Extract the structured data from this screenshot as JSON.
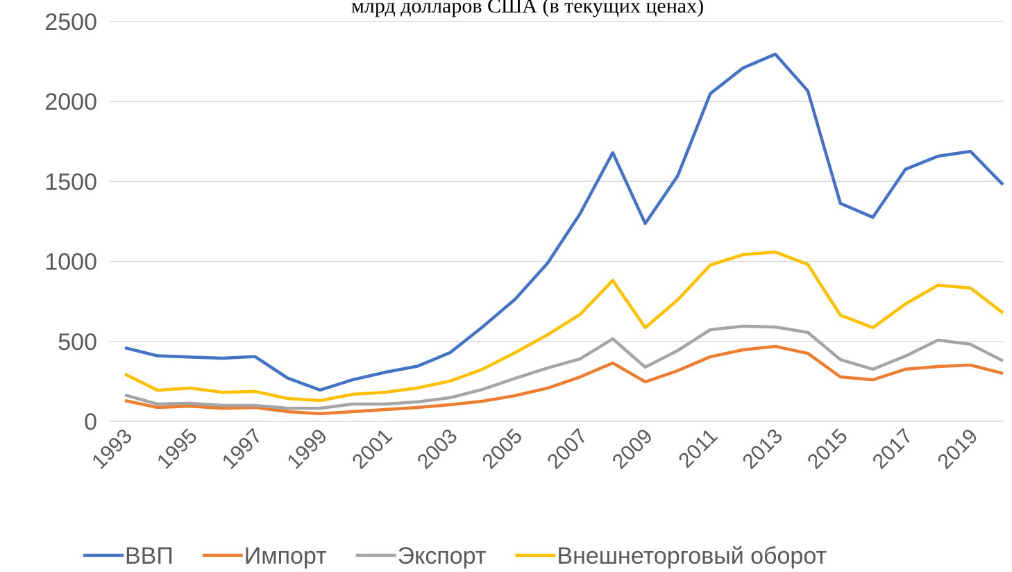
{
  "chart_data": {
    "type": "line",
    "title": "млрд долларов США (в текущих ценах)",
    "categories": [
      "1993",
      null,
      "1995",
      null,
      "1997",
      null,
      "1999",
      null,
      "2001",
      null,
      "2003",
      null,
      "2005",
      null,
      "2007",
      null,
      "2009",
      null,
      "2011",
      null,
      "2013",
      null,
      "2015",
      null,
      "2017",
      null,
      "2019",
      null
    ],
    "series": [
      {
        "name": "ВВП",
        "color": "#4472c4",
        "values": [
          460,
          410,
          402,
          395,
          405,
          271,
          196,
          260,
          307,
          345,
          430,
          591,
          764,
          990,
          1300,
          1680,
          1237,
          1536,
          2049,
          2209,
          2296,
          2066,
          1363,
          1276,
          1576,
          1658,
          1688,
          1480
        ]
      },
      {
        "name": "Импорт",
        "color": "#ed7d31",
        "values": [
          130,
          87,
          95,
          82,
          87,
          61,
          48,
          61,
          74,
          87,
          104,
          126,
          161,
          208,
          278,
          365,
          247,
          317,
          404,
          447,
          469,
          425,
          278,
          260,
          326,
          343,
          352,
          300
        ]
      },
      {
        "name": "Экспорт",
        "color": "#a5a5a5",
        "values": [
          165,
          108,
          113,
          100,
          100,
          82,
          82,
          108,
          108,
          122,
          148,
          200,
          269,
          334,
          391,
          516,
          339,
          443,
          573,
          595,
          590,
          556,
          386,
          326,
          408,
          508,
          482,
          378
        ]
      },
      {
        "name": "Внешнеторговый оборот",
        "color": "#ffc000",
        "values": [
          295,
          195,
          208,
          182,
          187,
          143,
          130,
          169,
          182,
          209,
          252,
          326,
          430,
          542,
          669,
          881,
          586,
          760,
          977,
          1042,
          1059,
          981,
          664,
          586,
          734,
          851,
          834,
          678
        ]
      }
    ],
    "ylim": [
      0,
      2500
    ],
    "yticks": [
      0,
      500,
      1000,
      1500,
      2000,
      2500
    ],
    "grid": true,
    "legend": "bottom"
  }
}
